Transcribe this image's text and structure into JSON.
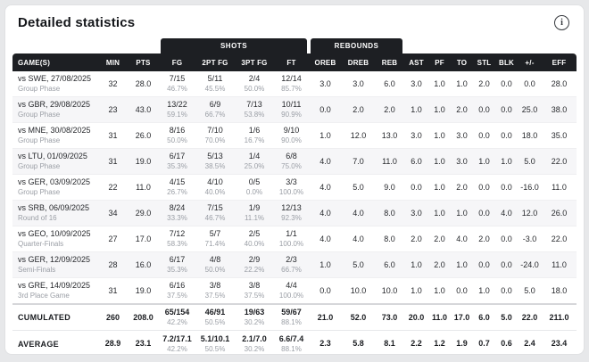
{
  "header": {
    "title": "Detailed statistics",
    "info_icon": "i"
  },
  "table": {
    "groups": [
      "SHOTS",
      "REBOUNDS"
    ],
    "columns": [
      "GAME(S)",
      "MIN",
      "PTS",
      "FG",
      "2PT FG",
      "3PT FG",
      "FT",
      "OREB",
      "DREB",
      "REB",
      "AST",
      "PF",
      "TO",
      "STL",
      "BLK",
      "+/-",
      "EFF"
    ],
    "rows": [
      {
        "game": "vs SWE, 27/08/2025",
        "phase": "Group Phase",
        "min": "32",
        "pts": "28.0",
        "fg": "7/15",
        "fg_pct": "46.7%",
        "fg2": "5/11",
        "fg2_pct": "45.5%",
        "fg3": "2/4",
        "fg3_pct": "50.0%",
        "ft": "12/14",
        "ft_pct": "85.7%",
        "oreb": "3.0",
        "dreb": "3.0",
        "reb": "6.0",
        "ast": "3.0",
        "pf": "1.0",
        "to": "1.0",
        "stl": "2.0",
        "blk": "0.0",
        "pm": "0.0",
        "eff": "28.0"
      },
      {
        "game": "vs GBR, 29/08/2025",
        "phase": "Group Phase",
        "min": "23",
        "pts": "43.0",
        "fg": "13/22",
        "fg_pct": "59.1%",
        "fg2": "6/9",
        "fg2_pct": "66.7%",
        "fg3": "7/13",
        "fg3_pct": "53.8%",
        "ft": "10/11",
        "ft_pct": "90.9%",
        "oreb": "0.0",
        "dreb": "2.0",
        "reb": "2.0",
        "ast": "1.0",
        "pf": "1.0",
        "to": "2.0",
        "stl": "0.0",
        "blk": "0.0",
        "pm": "25.0",
        "eff": "38.0"
      },
      {
        "game": "vs MNE, 30/08/2025",
        "phase": "Group Phase",
        "min": "31",
        "pts": "26.0",
        "fg": "8/16",
        "fg_pct": "50.0%",
        "fg2": "7/10",
        "fg2_pct": "70.0%",
        "fg3": "1/6",
        "fg3_pct": "16.7%",
        "ft": "9/10",
        "ft_pct": "90.0%",
        "oreb": "1.0",
        "dreb": "12.0",
        "reb": "13.0",
        "ast": "3.0",
        "pf": "1.0",
        "to": "3.0",
        "stl": "0.0",
        "blk": "0.0",
        "pm": "18.0",
        "eff": "35.0"
      },
      {
        "game": "vs LTU, 01/09/2025",
        "phase": "Group Phase",
        "min": "31",
        "pts": "19.0",
        "fg": "6/17",
        "fg_pct": "35.3%",
        "fg2": "5/13",
        "fg2_pct": "38.5%",
        "fg3": "1/4",
        "fg3_pct": "25.0%",
        "ft": "6/8",
        "ft_pct": "75.0%",
        "oreb": "4.0",
        "dreb": "7.0",
        "reb": "11.0",
        "ast": "6.0",
        "pf": "1.0",
        "to": "3.0",
        "stl": "1.0",
        "blk": "1.0",
        "pm": "5.0",
        "eff": "22.0"
      },
      {
        "game": "vs GER, 03/09/2025",
        "phase": "Group Phase",
        "min": "22",
        "pts": "11.0",
        "fg": "4/15",
        "fg_pct": "26.7%",
        "fg2": "4/10",
        "fg2_pct": "40.0%",
        "fg3": "0/5",
        "fg3_pct": "0.0%",
        "ft": "3/3",
        "ft_pct": "100.0%",
        "oreb": "4.0",
        "dreb": "5.0",
        "reb": "9.0",
        "ast": "0.0",
        "pf": "1.0",
        "to": "2.0",
        "stl": "0.0",
        "blk": "0.0",
        "pm": "-16.0",
        "eff": "11.0"
      },
      {
        "game": "vs SRB, 06/09/2025",
        "phase": "Round of 16",
        "min": "34",
        "pts": "29.0",
        "fg": "8/24",
        "fg_pct": "33.3%",
        "fg2": "7/15",
        "fg2_pct": "46.7%",
        "fg3": "1/9",
        "fg3_pct": "11.1%",
        "ft": "12/13",
        "ft_pct": "92.3%",
        "oreb": "4.0",
        "dreb": "4.0",
        "reb": "8.0",
        "ast": "3.0",
        "pf": "1.0",
        "to": "1.0",
        "stl": "0.0",
        "blk": "4.0",
        "pm": "12.0",
        "eff": "26.0"
      },
      {
        "game": "vs GEO, 10/09/2025",
        "phase": "Quarter-Finals",
        "min": "27",
        "pts": "17.0",
        "fg": "7/12",
        "fg_pct": "58.3%",
        "fg2": "5/7",
        "fg2_pct": "71.4%",
        "fg3": "2/5",
        "fg3_pct": "40.0%",
        "ft": "1/1",
        "ft_pct": "100.0%",
        "oreb": "4.0",
        "dreb": "4.0",
        "reb": "8.0",
        "ast": "2.0",
        "pf": "2.0",
        "to": "4.0",
        "stl": "2.0",
        "blk": "0.0",
        "pm": "-3.0",
        "eff": "22.0"
      },
      {
        "game": "vs GER, 12/09/2025",
        "phase": "Semi-Finals",
        "min": "28",
        "pts": "16.0",
        "fg": "6/17",
        "fg_pct": "35.3%",
        "fg2": "4/8",
        "fg2_pct": "50.0%",
        "fg3": "2/9",
        "fg3_pct": "22.2%",
        "ft": "2/3",
        "ft_pct": "66.7%",
        "oreb": "1.0",
        "dreb": "5.0",
        "reb": "6.0",
        "ast": "1.0",
        "pf": "2.0",
        "to": "1.0",
        "stl": "0.0",
        "blk": "0.0",
        "pm": "-24.0",
        "eff": "11.0"
      },
      {
        "game": "vs GRE, 14/09/2025",
        "phase": "3rd Place Game",
        "min": "31",
        "pts": "19.0",
        "fg": "6/16",
        "fg_pct": "37.5%",
        "fg2": "3/8",
        "fg2_pct": "37.5%",
        "fg3": "3/8",
        "fg3_pct": "37.5%",
        "ft": "4/4",
        "ft_pct": "100.0%",
        "oreb": "0.0",
        "dreb": "10.0",
        "reb": "10.0",
        "ast": "1.0",
        "pf": "1.0",
        "to": "0.0",
        "stl": "1.0",
        "blk": "0.0",
        "pm": "5.0",
        "eff": "18.0"
      }
    ],
    "cumulated": {
      "label": "CUMULATED",
      "min": "260",
      "pts": "208.0",
      "fg": "65/154",
      "fg_pct": "42.2%",
      "fg2": "46/91",
      "fg2_pct": "50.5%",
      "fg3": "19/63",
      "fg3_pct": "30.2%",
      "ft": "59/67",
      "ft_pct": "88.1%",
      "oreb": "21.0",
      "dreb": "52.0",
      "reb": "73.0",
      "ast": "20.0",
      "pf": "11.0",
      "to": "17.0",
      "stl": "6.0",
      "blk": "5.0",
      "pm": "22.0",
      "eff": "211.0"
    },
    "average": {
      "label": "AVERAGE",
      "min": "28.9",
      "pts": "23.1",
      "fg": "7.2/17.1",
      "fg_pct": "42.2%",
      "fg2": "5.1/10.1",
      "fg2_pct": "50.5%",
      "fg3": "2.1/7.0",
      "fg3_pct": "30.2%",
      "ft": "6.6/7.4",
      "ft_pct": "88.1%",
      "oreb": "2.3",
      "dreb": "5.8",
      "reb": "8.1",
      "ast": "2.2",
      "pf": "1.2",
      "to": "1.9",
      "stl": "0.7",
      "blk": "0.6",
      "pm": "2.4",
      "eff": "23.4"
    }
  },
  "colors": {
    "header_bg": "#1d1f23",
    "text_primary": "#26282c",
    "text_muted": "#9a9ea5",
    "card_bg": "#ffffff",
    "page_bg": "#e7e8ea"
  }
}
